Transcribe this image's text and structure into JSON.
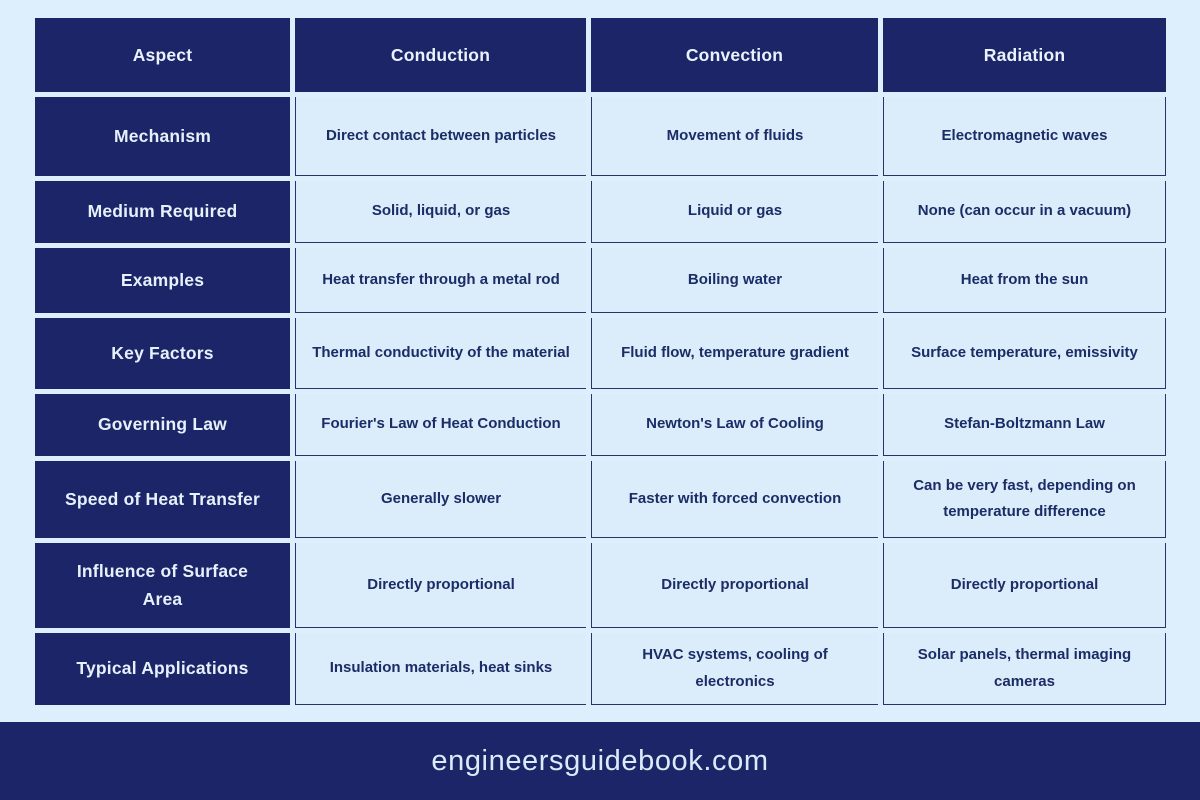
{
  "chart_data": {
    "type": "table",
    "columns": [
      "Aspect",
      "Conduction",
      "Convection",
      "Radiation"
    ],
    "rows": [
      [
        "Mechanism",
        "Direct contact between particles",
        "Movement of fluids",
        "Electromagnetic waves"
      ],
      [
        "Medium Required",
        "Solid, liquid, or gas",
        "Liquid or gas",
        "None (can occur in a vacuum)"
      ],
      [
        "Examples",
        "Heat transfer through a metal rod",
        "Boiling water",
        "Heat from the sun"
      ],
      [
        "Key Factors",
        "Thermal conductivity of the material",
        "Fluid flow, temperature gradient",
        "Surface temperature, emissivity"
      ],
      [
        "Governing Law",
        "Fourier's Law of Heat Conduction",
        "Newton's Law of Cooling",
        "Stefan-Boltzmann Law"
      ],
      [
        "Speed of Heat Transfer",
        "Generally slower",
        "Faster with forced convection",
        "Can be very fast, depending on temperature difference"
      ],
      [
        "Influence of Surface Area",
        "Directly proportional",
        "Directly proportional",
        "Directly proportional"
      ],
      [
        "Typical Applications",
        "Insulation materials, heat sinks",
        "HVAC systems, cooling of electronics",
        "Solar panels, thermal imaging cameras"
      ]
    ],
    "layout": {
      "header_row": true,
      "header_column": true,
      "grid": true
    }
  },
  "footer": {
    "site": "engineersguidebook.com"
  },
  "colors": {
    "navy": "#1b2568",
    "page_bg": "#ddeefc",
    "cell_bg": "#dbedfb",
    "cell_text": "#1b2c66",
    "header_text": "#eaf3fd",
    "grid_line": "#25356b"
  }
}
